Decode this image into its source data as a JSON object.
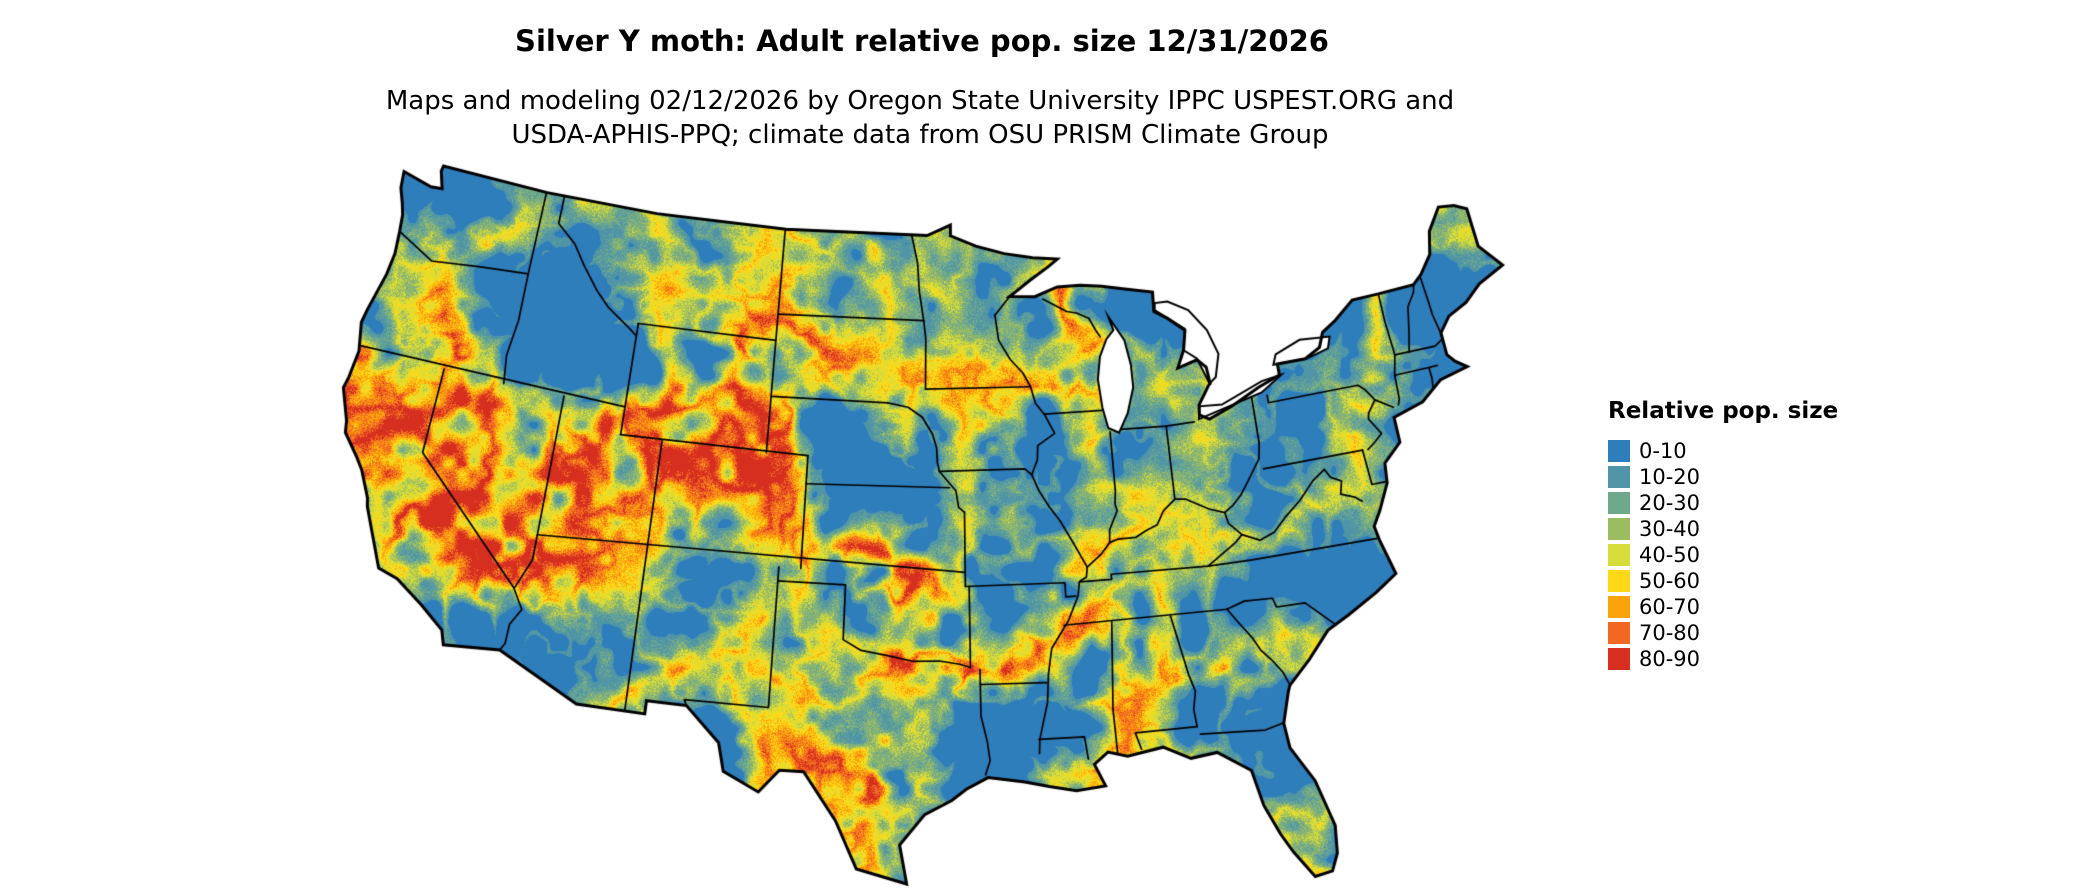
{
  "title": "Silver Y moth: Adult relative pop. size 12/31/2026",
  "subtitle_line1": "Maps and modeling 02/12/2026 by Oregon State University IPPC USPEST.ORG and",
  "subtitle_line2": "USDA-APHIS-PPQ; climate data from OSU PRISM Climate Group",
  "map": {
    "region": "Contiguous United States",
    "layer": "Adult relative population size raster",
    "boundary_color": "#000000",
    "background_color": "#ffffff"
  },
  "legend": {
    "title": "Relative pop. size",
    "entries": [
      {
        "label": "0-10",
        "color": "#2e7ebc"
      },
      {
        "label": "10-20",
        "color": "#4f95a7"
      },
      {
        "label": "20-30",
        "color": "#6fa98c"
      },
      {
        "label": "30-40",
        "color": "#9cbc62"
      },
      {
        "label": "40-50",
        "color": "#d5dd3a"
      },
      {
        "label": "50-60",
        "color": "#ffd918"
      },
      {
        "label": "60-70",
        "color": "#fba30c"
      },
      {
        "label": "70-80",
        "color": "#f16822"
      },
      {
        "label": "80-90",
        "color": "#d62f1f"
      }
    ]
  }
}
